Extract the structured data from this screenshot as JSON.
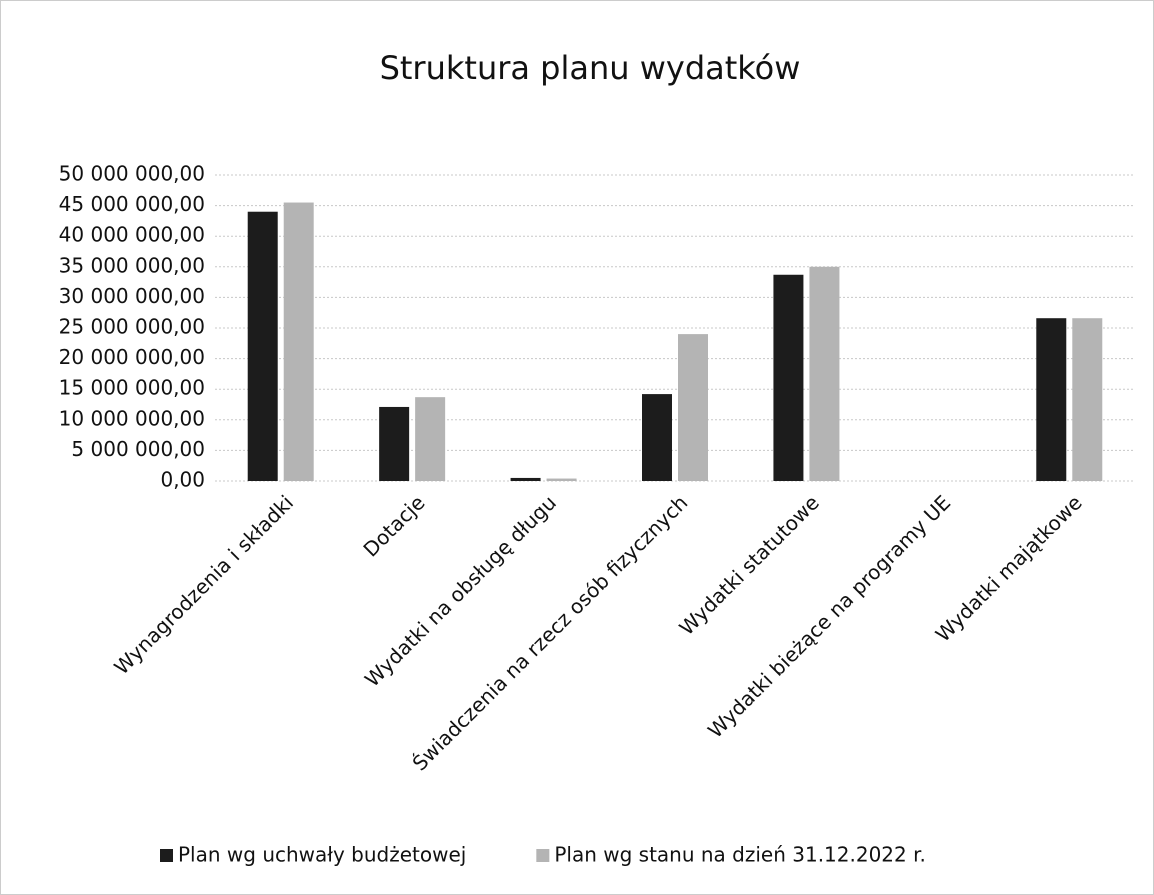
{
  "chart_data": {
    "type": "bar",
    "title": "Struktura planu wydatków",
    "categories": [
      "Wynagrodzenia i składki",
      "Dotacje",
      "Wydatki na obsługę długu",
      "Świadczenia na rzecz osób fizycznych",
      "Wydatki statutowe",
      "Wydatki bieżące na programy UE",
      "Wydatki majątkowe"
    ],
    "series": [
      {
        "name": "Plan wg uchwały budżetowej",
        "color": "#1c1c1c",
        "values": [
          44000000,
          12100000,
          500000,
          14200000,
          33700000,
          0,
          26600000
        ]
      },
      {
        "name": "Plan wg stanu na dzień 31.12.2022 r.",
        "color": "#b4b4b4",
        "values": [
          45500000,
          13700000,
          400000,
          24000000,
          35000000,
          0,
          26600000
        ]
      }
    ],
    "ylim": [
      0,
      50000000
    ],
    "yticks": [
      {
        "value": 0,
        "label": "0,00"
      },
      {
        "value": 5000000,
        "label": "5 000 000,00"
      },
      {
        "value": 10000000,
        "label": "10 000 000,00"
      },
      {
        "value": 15000000,
        "label": "15 000 000,00"
      },
      {
        "value": 20000000,
        "label": "20 000 000,00"
      },
      {
        "value": 25000000,
        "label": "25 000 000,00"
      },
      {
        "value": 30000000,
        "label": "30 000 000,00"
      },
      {
        "value": 35000000,
        "label": "35 000 000,00"
      },
      {
        "value": 40000000,
        "label": "40 000 000,00"
      },
      {
        "value": 45000000,
        "label": "45 000 000,00"
      },
      {
        "value": 50000000,
        "label": "50 000 000,00"
      }
    ],
    "grid": true,
    "legend": "bottom"
  }
}
